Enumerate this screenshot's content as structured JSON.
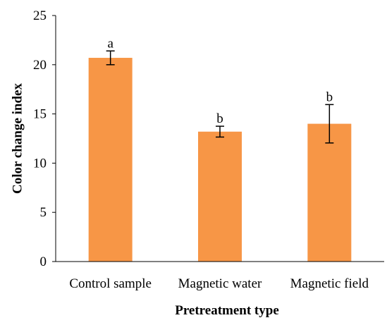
{
  "chart_data": {
    "type": "bar",
    "categories": [
      "Control sample",
      "Magnetic water",
      "Magnetic field"
    ],
    "values": [
      20.7,
      13.2,
      14.0
    ],
    "error_bars": [
      0.7,
      0.55,
      1.95
    ],
    "significance_letters": [
      "a",
      "b",
      "b"
    ],
    "xlabel": "Pretreatment type",
    "ylabel": "Color change index",
    "ylim": [
      0,
      25
    ],
    "yticks": [
      0,
      5,
      10,
      15,
      20,
      25
    ],
    "grid": false,
    "legend": "none",
    "bar_color": "#F79646",
    "error_bar_color": "#000000",
    "axis_color": "#000000"
  }
}
